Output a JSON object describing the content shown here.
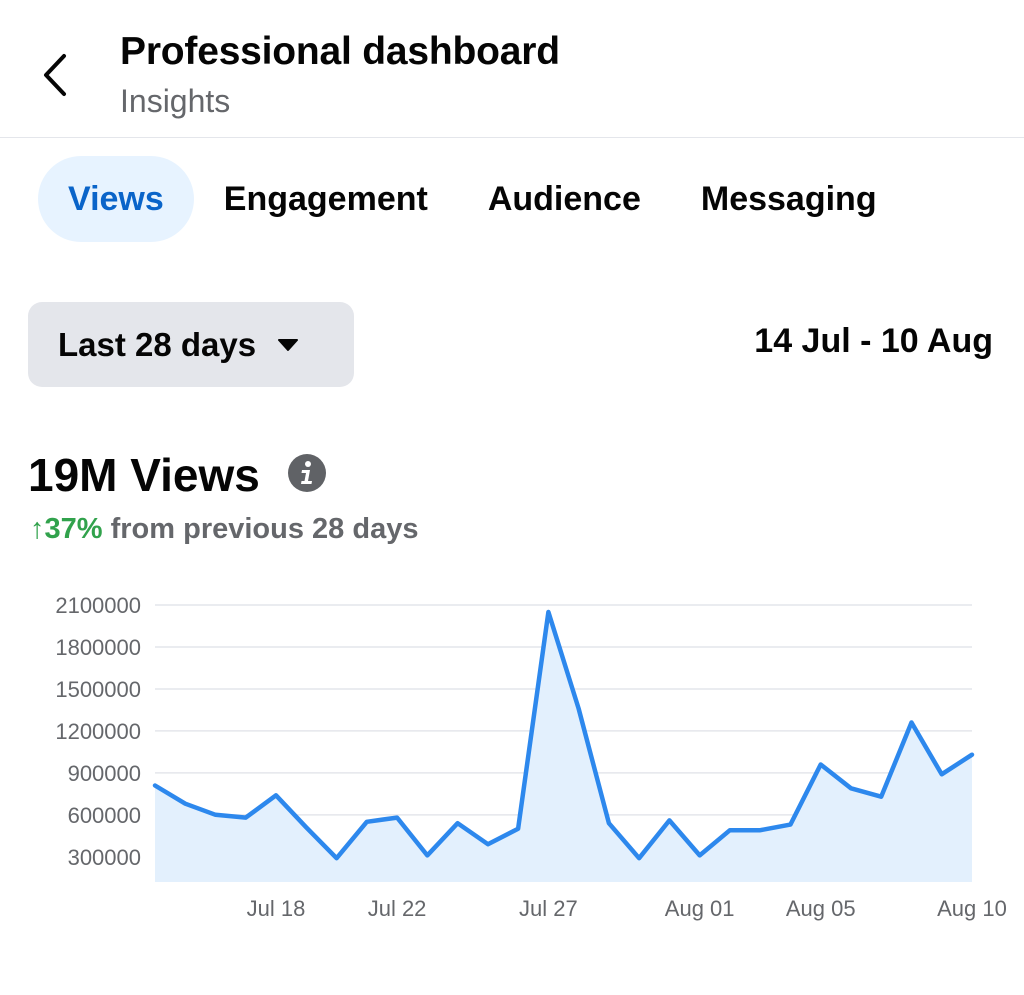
{
  "header": {
    "title": "Professional dashboard",
    "subtitle": "Insights",
    "back_icon": "chevron-left-icon"
  },
  "tabs": [
    {
      "label": "Views",
      "active": true
    },
    {
      "label": "Engagement",
      "active": false
    },
    {
      "label": "Audience",
      "active": false
    },
    {
      "label": "Messaging",
      "active": false
    }
  ],
  "filter": {
    "range_label": "Last 28 days",
    "date_range": "14 Jul - 10 Aug"
  },
  "summary": {
    "total": "19M Views",
    "change_arrow": "↑",
    "change_pct": "37%",
    "change_text": "from previous 28 days"
  },
  "colors": {
    "accent": "#1877f2",
    "positive": "#31a24c",
    "tab_active_bg": "#e7f3ff"
  },
  "chart_data": {
    "type": "area",
    "x": [
      "Jul 14",
      "Jul 15",
      "Jul 16",
      "Jul 17",
      "Jul 18",
      "Jul 19",
      "Jul 20",
      "Jul 21",
      "Jul 22",
      "Jul 23",
      "Jul 24",
      "Jul 25",
      "Jul 26",
      "Jul 27",
      "Jul 28",
      "Jul 29",
      "Jul 30",
      "Jul 31",
      "Aug 01",
      "Aug 02",
      "Aug 03",
      "Aug 04",
      "Aug 05",
      "Aug 06",
      "Aug 07",
      "Aug 08",
      "Aug 09",
      "Aug 10"
    ],
    "series": [
      {
        "values": [
          810000,
          680000,
          600000,
          580000,
          740000,
          510000,
          290000,
          550000,
          580000,
          310000,
          540000,
          390000,
          500000,
          2050000,
          1360000,
          540000,
          290000,
          560000,
          310000,
          490000,
          490000,
          530000,
          960000,
          790000,
          730000,
          1260000,
          890000,
          1030000
        ]
      }
    ],
    "y_ticks": [
      300000,
      600000,
      900000,
      1200000,
      1500000,
      1800000,
      2100000
    ],
    "x_tick_labels": [
      "Jul 18",
      "Jul 22",
      "Jul 27",
      "Aug 01",
      "Aug 05",
      "Aug 10"
    ],
    "x_tick_index": [
      4,
      8,
      13,
      18,
      22,
      27
    ],
    "ylim": [
      120000,
      2100000
    ],
    "grid": true,
    "line_color": "#2d88ed",
    "fill_color": "#e3f0fd"
  }
}
